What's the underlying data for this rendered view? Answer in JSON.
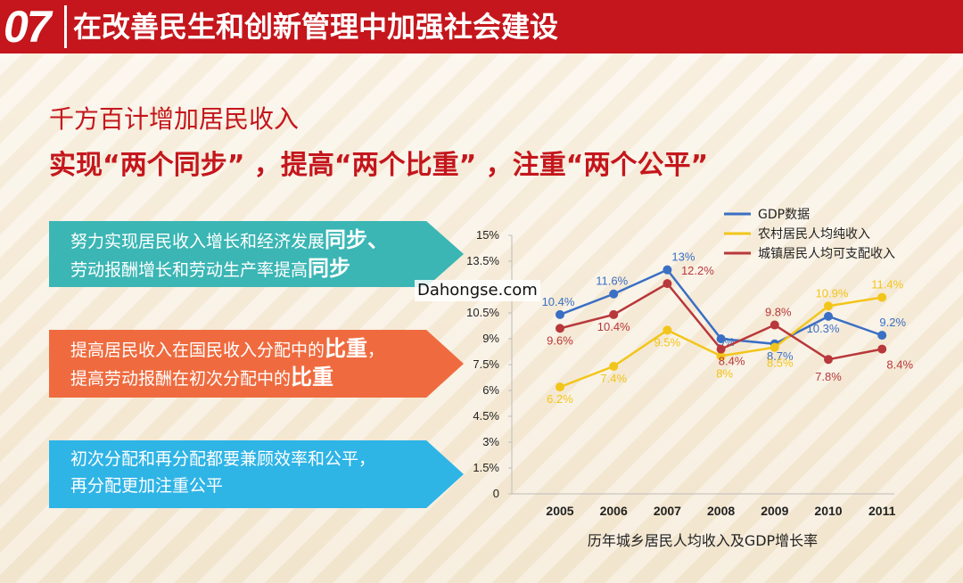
{
  "header": {
    "number": "07",
    "title": "在改善民生和创新管理中加强社会建设"
  },
  "subtitle": "千方百计增加居民收入",
  "subtitle2": "实现“两个同步” ，提高“两个比重” ，注重“两个公平”",
  "boxes": [
    {
      "line1_a": "努力实现居民收入增长和经济发展",
      "line1_b": "同步",
      "line1_c": "、",
      "line2_a": "劳动报酬增长和劳动生产率提高",
      "line2_b": "同步"
    },
    {
      "line1_a": "提高居民收入在国民收入分配中的",
      "line1_b": "比重",
      "line1_c": "，",
      "line2_a": "提高劳动报酬在初次分配中的",
      "line2_b": "比重"
    },
    {
      "line1_a": "初次分配和再分配都要兼顾效率和公平，",
      "line1_b": "",
      "line1_c": "",
      "line2_a": "再分配更加注重公平",
      "line2_b": ""
    }
  ],
  "watermark": "Dahongse.com",
  "colors": {
    "header": "#c4161c",
    "box1": "#3bb6b4",
    "box2": "#ef6b3f",
    "box3": "#2fb4e6",
    "gdp": "#3a6fc4",
    "rural": "#f2c51a",
    "urban": "#b8383b"
  },
  "chart_data": {
    "type": "line",
    "title": "历年城乡居民人均收入及GDP增长率",
    "categories": [
      "2005",
      "2006",
      "2007",
      "2008",
      "2009",
      "2010",
      "2011"
    ],
    "y_ticks": [
      "0",
      "1.5%",
      "3%",
      "4.5%",
      "6%",
      "7.5%",
      "9%",
      "10.5%",
      "13.5%",
      "15%"
    ],
    "ylim": [
      0,
      15
    ],
    "legend_position": "top-right",
    "series": [
      {
        "name": "GDP数据",
        "color": "#3a6fc4",
        "values": [
          10.4,
          11.6,
          13.0,
          9.0,
          8.7,
          10.3,
          9.2
        ],
        "labels": [
          "10.4%",
          "11.6%",
          "13%",
          "9%",
          "8.7%",
          "10.3%",
          "9.2%"
        ]
      },
      {
        "name": "农村居民人均纯收入",
        "color": "#f2c51a",
        "values": [
          6.2,
          7.4,
          9.5,
          8.0,
          8.5,
          10.9,
          11.4
        ],
        "labels": [
          "6.2%",
          "7.4%",
          "9.5%",
          "8%",
          "8.5%",
          "10.9%",
          "11.4%"
        ]
      },
      {
        "name": "城镇居民人均可支配收入",
        "color": "#b8383b",
        "values": [
          9.6,
          10.4,
          12.2,
          8.4,
          9.8,
          7.8,
          8.4
        ],
        "labels": [
          "9.6%",
          "10.4%",
          "12.2%",
          "8.4%",
          "9.8%",
          "7.8%",
          "8.4%"
        ]
      }
    ]
  }
}
